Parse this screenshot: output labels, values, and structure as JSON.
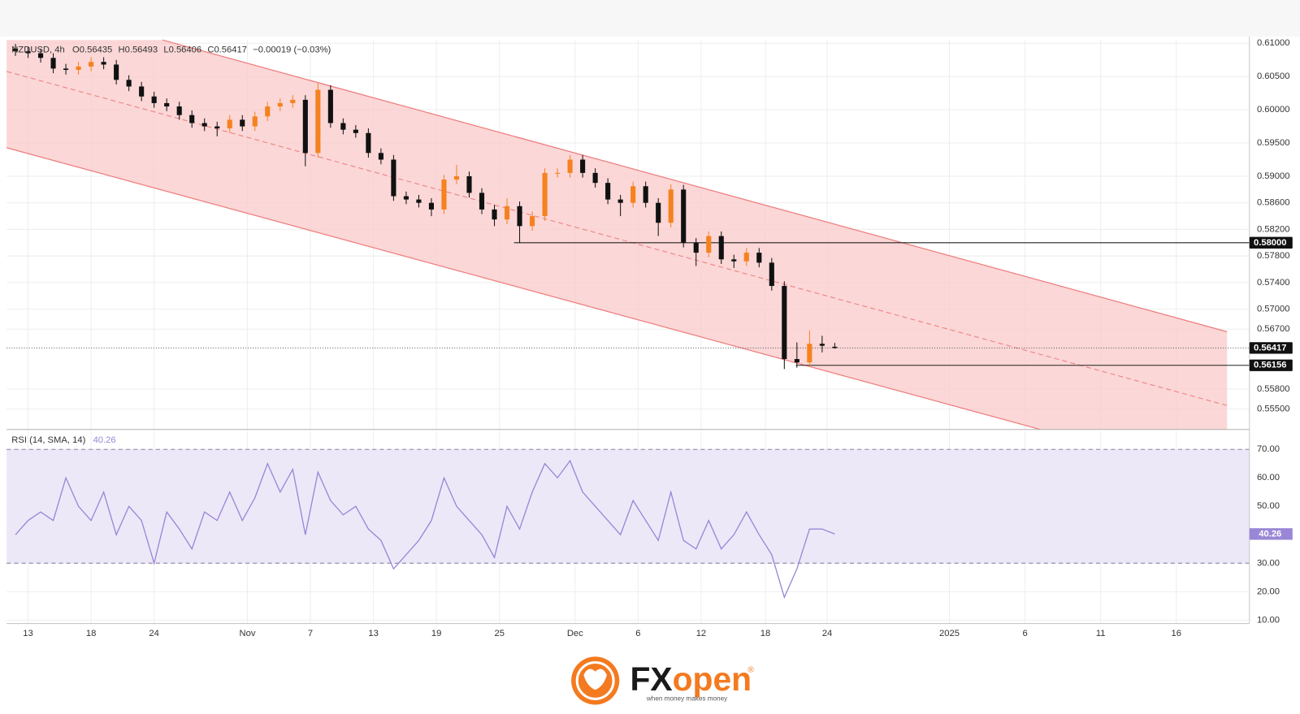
{
  "chart_data": [
    {
      "type": "candlestick",
      "title": "NZDUSD, 4h",
      "ohlc_labels": [
        "O0.56435",
        "H0.56493",
        "L0.56406",
        "C0.56417",
        "−0.00019 (−0.03%)"
      ],
      "x": [
        -1,
        0,
        1,
        2,
        3,
        4,
        5,
        6,
        7,
        8,
        9,
        10,
        11,
        12,
        13,
        14,
        15,
        16,
        17,
        18,
        19,
        20,
        21,
        22,
        23,
        24,
        25,
        26,
        27,
        28,
        29,
        30,
        31,
        32,
        33,
        34,
        35,
        36,
        37,
        38,
        39,
        40,
        41,
        42,
        43,
        44,
        45,
        46,
        47,
        48,
        49,
        50,
        51,
        52,
        53,
        54,
        55,
        56,
        57,
        58,
        59,
        60,
        61,
        62,
        63,
        64
      ],
      "open": [
        0.6092,
        0.6088,
        0.6085,
        0.6078,
        0.6062,
        0.606,
        0.6065,
        0.6072,
        0.6068,
        0.6045,
        0.6035,
        0.602,
        0.601,
        0.6005,
        0.5992,
        0.598,
        0.5975,
        0.5972,
        0.5985,
        0.5975,
        0.599,
        0.6005,
        0.601,
        0.6015,
        0.5935,
        0.603,
        0.598,
        0.597,
        0.5965,
        0.5935,
        0.5925,
        0.587,
        0.5865,
        0.586,
        0.585,
        0.5895,
        0.59,
        0.5875,
        0.585,
        0.5835,
        0.5855,
        0.5825,
        0.584,
        0.5905,
        0.5905,
        0.5925,
        0.5905,
        0.589,
        0.5865,
        0.586,
        0.5885,
        0.586,
        0.583,
        0.588,
        0.58,
        0.5785,
        0.581,
        0.5775,
        0.5772,
        0.5785,
        0.577,
        0.5735,
        0.5625,
        0.562,
        0.5648,
        0.56435
      ],
      "high": [
        0.6099,
        0.6095,
        0.6092,
        0.6085,
        0.6069,
        0.6072,
        0.6079,
        0.6079,
        0.6075,
        0.6052,
        0.6042,
        0.6027,
        0.6017,
        0.6012,
        0.5999,
        0.5987,
        0.5982,
        0.5992,
        0.5992,
        0.5997,
        0.6012,
        0.6017,
        0.6022,
        0.6022,
        0.604,
        0.6037,
        0.5987,
        0.5977,
        0.5972,
        0.5942,
        0.5932,
        0.5877,
        0.5872,
        0.5867,
        0.5902,
        0.5917,
        0.5907,
        0.5882,
        0.5857,
        0.5867,
        0.5862,
        0.5847,
        0.5912,
        0.5912,
        0.5932,
        0.5932,
        0.5912,
        0.5897,
        0.5872,
        0.5892,
        0.5892,
        0.5867,
        0.5888,
        0.5887,
        0.5807,
        0.5817,
        0.5817,
        0.5782,
        0.5792,
        0.5792,
        0.5777,
        0.5742,
        0.565,
        0.5668,
        0.566,
        0.56493
      ],
      "low": [
        0.6081,
        0.6078,
        0.6071,
        0.6055,
        0.6053,
        0.6053,
        0.6058,
        0.6061,
        0.6038,
        0.6028,
        0.6013,
        0.6003,
        0.5998,
        0.5985,
        0.5973,
        0.5968,
        0.596,
        0.5965,
        0.5968,
        0.5968,
        0.5983,
        0.5998,
        0.6003,
        0.5915,
        0.5928,
        0.5973,
        0.5963,
        0.5958,
        0.5928,
        0.5918,
        0.5863,
        0.5858,
        0.5853,
        0.584,
        0.5843,
        0.5888,
        0.5868,
        0.5843,
        0.5825,
        0.5828,
        0.58,
        0.5818,
        0.5833,
        0.5898,
        0.5898,
        0.5898,
        0.5883,
        0.5858,
        0.584,
        0.5853,
        0.5853,
        0.581,
        0.5823,
        0.5793,
        0.5765,
        0.5778,
        0.5768,
        0.5762,
        0.5765,
        0.5763,
        0.5728,
        0.561,
        0.5612,
        0.5613,
        0.5635,
        0.56406
      ],
      "close": [
        0.6088,
        0.6085,
        0.6078,
        0.6062,
        0.606,
        0.6065,
        0.6072,
        0.6068,
        0.6045,
        0.6035,
        0.602,
        0.601,
        0.6005,
        0.5992,
        0.598,
        0.5975,
        0.5972,
        0.5985,
        0.5975,
        0.599,
        0.6005,
        0.601,
        0.6015,
        0.5935,
        0.603,
        0.598,
        0.597,
        0.5965,
        0.5935,
        0.5925,
        0.587,
        0.5865,
        0.586,
        0.585,
        0.5895,
        0.59,
        0.5875,
        0.585,
        0.5835,
        0.5855,
        0.5825,
        0.584,
        0.5905,
        0.5905,
        0.5925,
        0.5905,
        0.589,
        0.5865,
        0.586,
        0.5885,
        0.586,
        0.583,
        0.588,
        0.58,
        0.5785,
        0.581,
        0.5775,
        0.5772,
        0.5785,
        0.577,
        0.5735,
        0.5625,
        0.562,
        0.5648,
        0.5645,
        0.56417
      ],
      "up_color": "#f5821f",
      "down_color": "#111111",
      "xlim": [
        -1.7,
        96.9
      ],
      "xticks": [
        {
          "value": 0,
          "label": "13"
        },
        {
          "value": 5,
          "label": "18"
        },
        {
          "value": 10,
          "label": "24"
        },
        {
          "value": 17.4,
          "label": "Nov"
        },
        {
          "value": 22.4,
          "label": "7"
        },
        {
          "value": 27.4,
          "label": "13"
        },
        {
          "value": 32.4,
          "label": "19"
        },
        {
          "value": 37.4,
          "label": "25"
        },
        {
          "value": 43.4,
          "label": "Dec"
        },
        {
          "value": 48.4,
          "label": "6"
        },
        {
          "value": 53.4,
          "label": "12"
        },
        {
          "value": 58.5,
          "label": "18"
        },
        {
          "value": 63.4,
          "label": "24"
        },
        {
          "value": 73.1,
          "label": "2025"
        },
        {
          "value": 79.1,
          "label": "6"
        },
        {
          "value": 85.1,
          "label": "11"
        },
        {
          "value": 91.1,
          "label": "16"
        }
      ],
      "ylim": [
        0.5519,
        0.6105
      ],
      "yticks": [
        {
          "value": 0.61,
          "label": "0.61000"
        },
        {
          "value": 0.605,
          "label": "0.60500"
        },
        {
          "value": 0.6,
          "label": "0.60000"
        },
        {
          "value": 0.595,
          "label": "0.59500"
        },
        {
          "value": 0.59,
          "label": "0.59000"
        },
        {
          "value": 0.586,
          "label": "0.58600"
        },
        {
          "value": 0.582,
          "label": "0.58200"
        },
        {
          "value": 0.578,
          "label": "0.57800"
        },
        {
          "value": 0.574,
          "label": "0.57400"
        },
        {
          "value": 0.57,
          "label": "0.57000"
        },
        {
          "value": 0.567,
          "label": "0.56700"
        },
        {
          "value": 0.558,
          "label": "0.55800"
        },
        {
          "value": 0.555,
          "label": "0.55500"
        }
      ],
      "levels": [
        {
          "value": 0.58,
          "label": "0.58000"
        },
        {
          "value": 0.56156,
          "label": "0.56156"
        }
      ],
      "price_label": {
        "value": 0.56417,
        "label": "0.56417"
      },
      "grid": true
    },
    {
      "type": "line",
      "title": "RSI (14, SMA, 14)",
      "last_value": 40.26,
      "color": "#9a86d6",
      "values": [
        40,
        45,
        48,
        45,
        60,
        50,
        45,
        55,
        40,
        50,
        45,
        30,
        48,
        42,
        35,
        48,
        45,
        55,
        45,
        53,
        65,
        55,
        63,
        40,
        62,
        52,
        47,
        50,
        42,
        38,
        28,
        33,
        38,
        45,
        60,
        50,
        45,
        40,
        32,
        50,
        42,
        55,
        65,
        60,
        66,
        55,
        50,
        45,
        40,
        52,
        45,
        38,
        55,
        38,
        35,
        45,
        35,
        40,
        48,
        40,
        33,
        18,
        28,
        42,
        42,
        40.26
      ],
      "ylim": [
        8.8,
        76.4
      ],
      "yticks": [
        {
          "value": 70,
          "label": "70.00"
        },
        {
          "value": 60,
          "label": "60.00"
        },
        {
          "value": 50,
          "label": "50.00"
        },
        {
          "value": 40,
          "label": "40.00"
        },
        {
          "value": 30,
          "label": "30.00"
        },
        {
          "value": 20,
          "label": "20.00"
        },
        {
          "value": 10,
          "label": "10.00"
        }
      ],
      "band": [
        30,
        70
      ]
    }
  ],
  "logo": {
    "brand_a": "FX",
    "brand_b": "open",
    "mark": "®",
    "tagline": "when money makes money"
  }
}
